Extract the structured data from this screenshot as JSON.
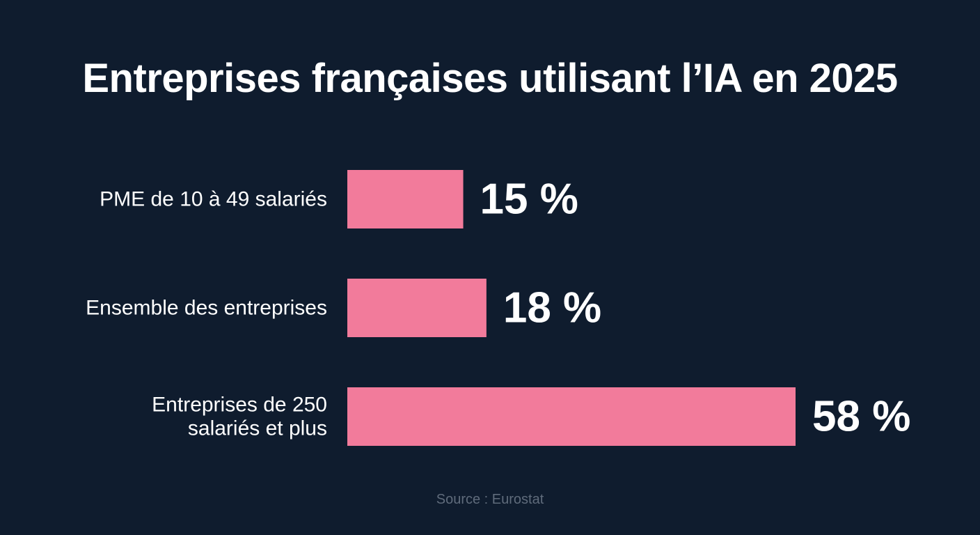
{
  "title": "Entreprises françaises utilisant l’IA en 2025",
  "source": "Source : Eurostat",
  "colors": {
    "background": "#0f1c2e",
    "bar": "#f27b9b",
    "text": "#ffffff",
    "source": "#5f6b7b"
  },
  "chart_data": {
    "type": "bar",
    "orientation": "horizontal",
    "categories": [
      [
        "PME de 10 à 49 salariés"
      ],
      [
        "Ensemble des entreprises"
      ],
      [
        "Entreprises de 250",
        "salariés et plus"
      ]
    ],
    "values": [
      15,
      18,
      58
    ],
    "value_labels": [
      "15 %",
      "18 %",
      "58 %"
    ],
    "title": "Entreprises françaises utilisant l’IA en 2025",
    "xlabel": "",
    "ylabel": "",
    "xlim": [
      0,
      58
    ],
    "grid": false,
    "legend": "none"
  }
}
